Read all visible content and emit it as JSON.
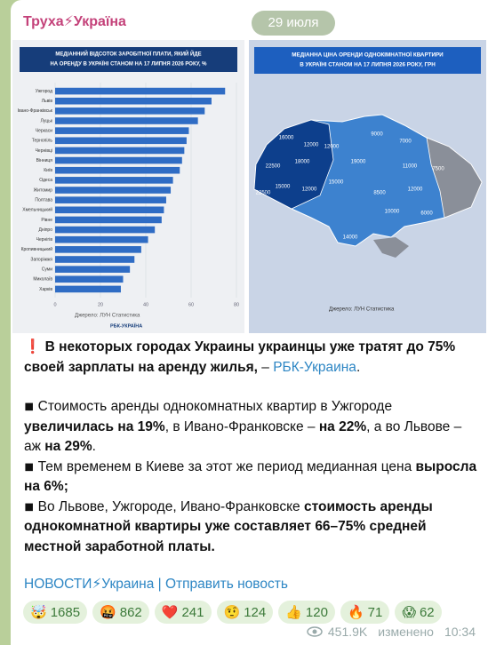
{
  "header": {
    "channel": "Труха⚡Україна",
    "date": "29 июля"
  },
  "chart_data": {
    "type": "barh",
    "title_lines": [
      "МЕДІАННИЙ ВІДСОТОК ЗАРОБІТНОЇ ПЛАТИ, ЯКИЙ ЙДЕ",
      "НА ОРЕНДУ В УКРАЇНІ СТАНОМ НА 17 ЛИПНЯ 2026 РОКУ, %"
    ],
    "categories": [
      "Ужгород",
      "Львів",
      "Івано-Франківськ",
      "Луцьк",
      "Черкаси",
      "Тернопіль",
      "Чернівці",
      "Вінниця",
      "Київ",
      "Одеса",
      "Житомир",
      "Полтава",
      "Хмельницький",
      "Рівне",
      "Дніпро",
      "Чернігів",
      "Кропивницький",
      "Запоріжжя",
      "Суми",
      "Миколаїв",
      "Харків"
    ],
    "values": [
      75,
      69,
      66,
      63,
      59,
      58,
      57,
      56,
      55,
      52,
      51,
      49,
      48,
      47,
      44,
      41,
      38,
      35,
      33,
      30,
      29
    ],
    "color": "#2f6cc4",
    "xlim": [
      0,
      80
    ],
    "xticks": [
      0,
      20,
      40,
      60,
      80
    ],
    "source": "Джерело: ЛУН Статистика",
    "brand": "РБК-УКРАЇНА"
  },
  "map": {
    "title_lines": [
      "МЕДІАННА ЦІНА ОРЕНДИ ОДНОКІМНАТНОЇ КВАРТИРИ",
      "В УКРАЇНІ СТАНОМ НА 17 ЛИПНЯ 2026 РОКУ, ГРН"
    ],
    "values": [
      16000,
      12000,
      12000,
      9000,
      7000,
      22500,
      18000,
      19000,
      11000,
      7500,
      15000,
      12000,
      22500,
      15000,
      8500,
      12000,
      10000,
      6000,
      14000
    ],
    "source": "Джерело: ЛУН Статистика"
  },
  "post": {
    "paragraphs": [
      [
        {
          "text": "❗ "
        },
        {
          "text": "В некоторых городах Украины украинцы уже тратят до 75% своей зарплаты на аренду жилья,",
          "bold": true
        },
        {
          "text": " –  "
        },
        {
          "text": "РБК-Украина",
          "link": true
        },
        {
          "text": "."
        }
      ],
      [
        {
          "text": "◾ Стоимость аренды однокомнатных квартир в Ужгороде "
        },
        {
          "text": "увеличилась на 19%",
          "bold": true
        },
        {
          "text": ", в Ивано-Франковске – "
        },
        {
          "text": "на 22%",
          "bold": true
        },
        {
          "text": ", а во Львове – аж "
        },
        {
          "text": "на 29%",
          "bold": true
        },
        {
          "text": "."
        }
      ],
      [
        {
          "text": "◾ Тем временем в Киеве за этот же период медианная цена "
        },
        {
          "text": "выросла на 6%;",
          "bold": true
        }
      ],
      [
        {
          "text": "◾ Во Львове, Ужгороде, Ивано-Франковске "
        },
        {
          "text": "стоимость аренды однокомнатной квартиры уже составляет 66–75% средней местной заработной платы.",
          "bold": true
        }
      ]
    ],
    "links": [
      {
        "text": "НОВОСТИ⚡Украина",
        "link": true
      },
      {
        "text": " | "
      },
      {
        "text": "Отправить новость",
        "link": true
      }
    ]
  },
  "reactions": [
    {
      "emoji": "🤯",
      "count": 1685
    },
    {
      "emoji": "🤬",
      "count": 862
    },
    {
      "emoji": "❤️",
      "count": 241
    },
    {
      "emoji": "🤨",
      "count": 124
    },
    {
      "emoji": "👍",
      "count": 120
    },
    {
      "emoji": "🔥",
      "count": 71
    },
    {
      "emoji": "😱",
      "count": 62
    }
  ],
  "footer": {
    "views": "451.9K",
    "edited": "изменено",
    "time": "10:34"
  }
}
